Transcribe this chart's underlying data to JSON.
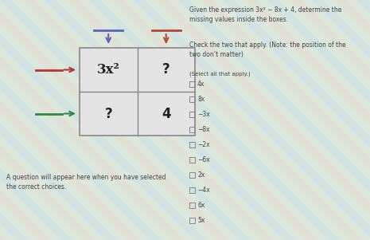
{
  "bg_color": "#dce8dc",
  "stripe_color1": "#c8dfe8",
  "stripe_color2": "#e8dcd8",
  "title_text": "Given the expression 3x² − 8x + 4, determine the\nmissing values inside the boxes.",
  "check_text": "Check the two that apply. (Note: the position of the\ntwo don’t matter)",
  "select_text": "(Select all that apply.)",
  "bottom_text": "A question will appear here when you have selected\nthe correct choices.",
  "box_top_left": "3x²",
  "box_top_right": "?",
  "box_bot_left": "?",
  "box_bot_right": "4",
  "choices": [
    "4x",
    "8x",
    "−3x",
    "−8x",
    "−2x",
    "−6x",
    "2x",
    "−4x",
    "6x",
    "5x"
  ],
  "text_color": "#444444",
  "box_line_color": "#888888",
  "box_fill": "#e8e8e8",
  "arrow_top_left_color": "#5566bb",
  "arrow_top_right_color": "#bb4433",
  "arrow_left_top_color": "#bb3333",
  "arrow_left_bot_color": "#338844"
}
